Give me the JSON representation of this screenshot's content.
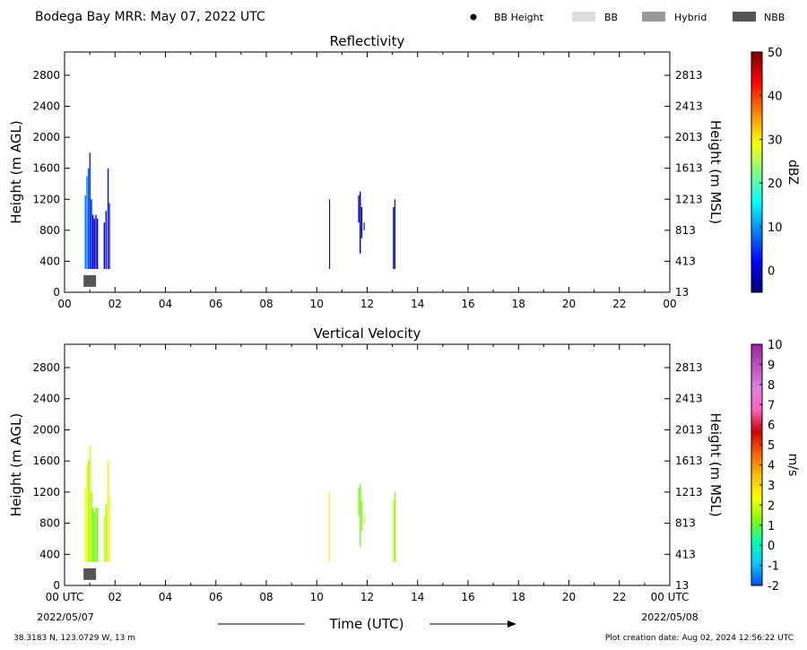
{
  "header": {
    "title": "Bodega Bay MRR:  May 07, 2022 UTC",
    "legend": [
      {
        "label": "BB Height",
        "kind": "dot",
        "color": "#000000"
      },
      {
        "label": "BB",
        "kind": "box",
        "color": "#dddddd"
      },
      {
        "label": "Hybrid",
        "kind": "box",
        "color": "#999999"
      },
      {
        "label": "NBB",
        "kind": "box",
        "color": "#555555"
      }
    ]
  },
  "footer": {
    "location": "38.3183 N, 123.0729 W, 13 m",
    "creation": "Plot creation date: Aug 02, 2024 12:56:22 UTC",
    "xlabel": "Time (UTC)",
    "start_date": "2022/05/07",
    "end_date": "2022/05/08"
  },
  "chart_data": [
    {
      "type": "heatmap",
      "title": "Reflectivity",
      "ylabel": "Height (m AGL)",
      "y2label": "Height (m MSL)",
      "xlim": [
        0,
        24
      ],
      "ylim": [
        0,
        3100
      ],
      "xticks": [
        "00",
        "02",
        "04",
        "06",
        "08",
        "10",
        "12",
        "14",
        "16",
        "18",
        "20",
        "22",
        "00"
      ],
      "yticks": [
        0,
        400,
        800,
        1200,
        1600,
        2000,
        2400,
        2800
      ],
      "y2ticks": [
        13,
        413,
        813,
        1213,
        1613,
        2013,
        2413,
        2813
      ],
      "colorbar": {
        "label": "dBZ",
        "range": [
          -5,
          50
        ],
        "ticks": [
          0,
          10,
          20,
          30,
          40,
          50
        ],
        "colors": [
          "#00007f",
          "#0000ff",
          "#0080ff",
          "#00ffff",
          "#80ff80",
          "#ffff00",
          "#ff8000",
          "#ff0000",
          "#7f0000"
        ]
      },
      "bright_band": [
        {
          "time": 1.0,
          "height": 140,
          "class": "NBB"
        }
      ],
      "columns": [
        {
          "time": 0.8,
          "width": 0.05,
          "bottom": 300,
          "top": 1250,
          "value": 8
        },
        {
          "time": 0.86,
          "width": 0.05,
          "bottom": 300,
          "top": 1500,
          "value": 10
        },
        {
          "time": 0.92,
          "width": 0.05,
          "bottom": 300,
          "top": 1600,
          "value": 6
        },
        {
          "time": 0.98,
          "width": 0.05,
          "bottom": 300,
          "top": 1800,
          "value": 4
        },
        {
          "time": 1.04,
          "width": 0.05,
          "bottom": 300,
          "top": 1200,
          "value": 2
        },
        {
          "time": 1.1,
          "width": 0.05,
          "bottom": 300,
          "top": 1000,
          "value": 0
        },
        {
          "time": 1.16,
          "width": 0.05,
          "bottom": 300,
          "top": 950,
          "value": -1
        },
        {
          "time": 1.22,
          "width": 0.05,
          "bottom": 300,
          "top": 1000,
          "value": 1
        },
        {
          "time": 1.28,
          "width": 0.05,
          "bottom": 300,
          "top": 950,
          "value": -2
        },
        {
          "time": 1.55,
          "width": 0.05,
          "bottom": 300,
          "top": 900,
          "value": 1
        },
        {
          "time": 1.62,
          "width": 0.05,
          "bottom": 300,
          "top": 1050,
          "value": 2
        },
        {
          "time": 1.7,
          "width": 0.05,
          "bottom": 300,
          "top": 1600,
          "value": 3
        },
        {
          "time": 1.76,
          "width": 0.04,
          "bottom": 300,
          "top": 1150,
          "value": 1
        },
        {
          "time": 10.49,
          "width": 0.04,
          "bottom": 300,
          "top": 1200,
          "value": -3
        },
        {
          "time": 11.64,
          "width": 0.05,
          "bottom": 900,
          "top": 1250,
          "value": -2
        },
        {
          "time": 11.7,
          "width": 0.05,
          "bottom": 500,
          "top": 1300,
          "value": -1
        },
        {
          "time": 11.76,
          "width": 0.05,
          "bottom": 700,
          "top": 1100,
          "value": -3
        },
        {
          "time": 11.86,
          "width": 0.04,
          "bottom": 800,
          "top": 900,
          "value": -2
        },
        {
          "time": 13.02,
          "width": 0.05,
          "bottom": 300,
          "top": 1100,
          "value": -3
        },
        {
          "time": 13.08,
          "width": 0.04,
          "bottom": 300,
          "top": 1200,
          "value": -2
        }
      ]
    },
    {
      "type": "heatmap",
      "title": "Vertical Velocity",
      "ylabel": "Height (m AGL)",
      "y2label": "Height (m MSL)",
      "xlim": [
        0,
        24
      ],
      "ylim": [
        0,
        3100
      ],
      "xticks": [
        "00 UTC",
        "02",
        "04",
        "06",
        "08",
        "10",
        "12",
        "14",
        "16",
        "18",
        "20",
        "22",
        "00 UTC"
      ],
      "yticks": [
        0,
        400,
        800,
        1200,
        1600,
        2000,
        2400,
        2800
      ],
      "y2ticks": [
        13,
        413,
        813,
        1213,
        1613,
        2013,
        2413,
        2813
      ],
      "colorbar": {
        "label": "m/s",
        "range": [
          -2,
          10
        ],
        "ticks": [
          -2,
          -1,
          0,
          1,
          2,
          3,
          4,
          5,
          6,
          7,
          8,
          9,
          10
        ],
        "colors": [
          "#0050ff",
          "#00c8ff",
          "#00ffb0",
          "#80ff00",
          "#ffff00",
          "#ffc000",
          "#ff6000",
          "#d00000",
          "#ff60c0",
          "#e080e0",
          "#c050c0",
          "#a020a0"
        ]
      },
      "bright_band": [
        {
          "time": 1.0,
          "height": 140,
          "class": "NBB"
        }
      ],
      "columns": [
        {
          "time": 0.8,
          "width": 0.05,
          "bottom": 300,
          "top": 1250,
          "value": 2.2
        },
        {
          "time": 0.86,
          "width": 0.05,
          "bottom": 300,
          "top": 1550,
          "value": 2.5
        },
        {
          "time": 0.92,
          "width": 0.05,
          "bottom": 300,
          "top": 1600,
          "value": 1.6
        },
        {
          "time": 0.98,
          "width": 0.05,
          "bottom": 300,
          "top": 1800,
          "value": 2.0
        },
        {
          "time": 1.04,
          "width": 0.05,
          "bottom": 300,
          "top": 1200,
          "value": 1.4
        },
        {
          "time": 1.1,
          "width": 0.05,
          "bottom": 300,
          "top": 1000,
          "value": 1.2
        },
        {
          "time": 1.16,
          "width": 0.05,
          "bottom": 300,
          "top": 950,
          "value": 1.0
        },
        {
          "time": 1.22,
          "width": 0.05,
          "bottom": 300,
          "top": 1000,
          "value": 1.2
        },
        {
          "time": 1.28,
          "width": 0.05,
          "bottom": 300,
          "top": 1000,
          "value": 1.1
        },
        {
          "time": 1.55,
          "width": 0.05,
          "bottom": 300,
          "top": 900,
          "value": 2.0
        },
        {
          "time": 1.62,
          "width": 0.05,
          "bottom": 300,
          "top": 1050,
          "value": 1.5
        },
        {
          "time": 1.7,
          "width": 0.05,
          "bottom": 300,
          "top": 1600,
          "value": 2.6
        },
        {
          "time": 1.76,
          "width": 0.04,
          "bottom": 300,
          "top": 1150,
          "value": 2.2
        },
        {
          "time": 10.49,
          "width": 0.04,
          "bottom": 300,
          "top": 1200,
          "value": 2.6
        },
        {
          "time": 11.64,
          "width": 0.05,
          "bottom": 900,
          "top": 1250,
          "value": 1.2
        },
        {
          "time": 11.7,
          "width": 0.05,
          "bottom": 500,
          "top": 1300,
          "value": 1.0
        },
        {
          "time": 11.76,
          "width": 0.05,
          "bottom": 700,
          "top": 1100,
          "value": 1.3
        },
        {
          "time": 11.86,
          "width": 0.04,
          "bottom": 800,
          "top": 900,
          "value": 1.6
        },
        {
          "time": 13.02,
          "width": 0.05,
          "bottom": 300,
          "top": 1100,
          "value": 1.8
        },
        {
          "time": 13.08,
          "width": 0.04,
          "bottom": 300,
          "top": 1200,
          "value": 1.2
        }
      ]
    }
  ]
}
